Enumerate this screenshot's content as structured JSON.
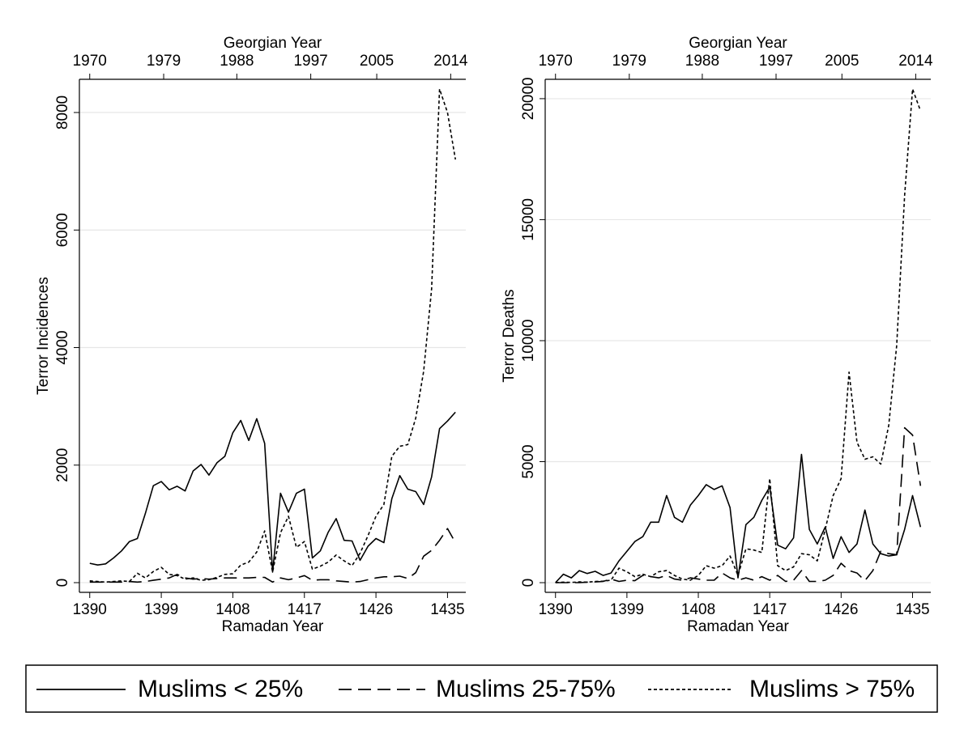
{
  "chart_data": [
    {
      "type": "line",
      "xlabel": "Ramadan Year",
      "x2label": "Georgian Year",
      "ylabel": "Terror Incidences",
      "x": [
        1390,
        1391,
        1392,
        1393,
        1394,
        1395,
        1396,
        1397,
        1398,
        1399,
        1400,
        1401,
        1402,
        1403,
        1404,
        1405,
        1406,
        1407,
        1408,
        1409,
        1410,
        1411,
        1412,
        1413,
        1414,
        1415,
        1416,
        1417,
        1418,
        1419,
        1420,
        1421,
        1422,
        1423,
        1424,
        1425,
        1426,
        1427,
        1428,
        1429,
        1430,
        1431,
        1432,
        1433,
        1434,
        1435,
        1436
      ],
      "series": [
        {
          "name": "Muslims < 25%",
          "color": "#000000",
          "dash": "solid",
          "values": [
            330,
            300,
            320,
            420,
            540,
            700,
            750,
            1180,
            1650,
            1720,
            1580,
            1640,
            1560,
            1900,
            2010,
            1830,
            2040,
            2150,
            2550,
            2760,
            2420,
            2790,
            2370,
            180,
            1520,
            1200,
            1520,
            1590,
            420,
            540,
            860,
            1090,
            720,
            710,
            380,
            620,
            750,
            680,
            1430,
            1820,
            1590,
            1550,
            1330,
            1800,
            2620,
            2750,
            2900
          ]
        },
        {
          "name": "Muslims 25-75%",
          "color": "#000000",
          "dash": "dashed",
          "values": [
            10,
            10,
            10,
            10,
            10,
            20,
            10,
            20,
            40,
            60,
            80,
            140,
            80,
            60,
            70,
            60,
            70,
            80,
            80,
            80,
            80,
            90,
            90,
            10,
            80,
            50,
            80,
            120,
            40,
            50,
            50,
            30,
            20,
            10,
            20,
            50,
            80,
            100,
            100,
            110,
            70,
            170,
            450,
            550,
            720,
            920,
            680
          ]
        },
        {
          "name": "Muslims > 75%",
          "color": "#000000",
          "dash": "dotted",
          "values": [
            30,
            20,
            10,
            20,
            30,
            20,
            160,
            80,
            190,
            260,
            140,
            120,
            60,
            80,
            40,
            50,
            90,
            140,
            150,
            300,
            350,
            520,
            880,
            180,
            850,
            1130,
            600,
            700,
            230,
            280,
            350,
            470,
            370,
            290,
            500,
            800,
            1130,
            1330,
            2150,
            2320,
            2350,
            2800,
            3600,
            5000,
            8400,
            8000,
            7200
          ]
        }
      ],
      "xlim": [
        1388.7,
        1437.3
      ],
      "xticks": [
        1390,
        1399,
        1408,
        1417,
        1426,
        1435
      ],
      "x2ticks": [
        {
          "value": 1390,
          "label": "1970"
        },
        {
          "value": 1399.3,
          "label": "1979"
        },
        {
          "value": 1408.5,
          "label": "1988"
        },
        {
          "value": 1417.8,
          "label": "1997"
        },
        {
          "value": 1426.1,
          "label": "2005"
        },
        {
          "value": 1435.4,
          "label": "2014"
        }
      ],
      "ylim": [
        -165,
        8565
      ],
      "yticks": [
        0,
        2000,
        4000,
        6000,
        8000
      ],
      "grid": true
    },
    {
      "type": "line",
      "xlabel": "Ramadan Year",
      "x2label": "Georgian Year",
      "ylabel": "Terror Deaths",
      "x": [
        1390,
        1391,
        1392,
        1393,
        1394,
        1395,
        1396,
        1397,
        1398,
        1399,
        1400,
        1401,
        1402,
        1403,
        1404,
        1405,
        1406,
        1407,
        1408,
        1409,
        1410,
        1411,
        1412,
        1413,
        1414,
        1415,
        1416,
        1417,
        1418,
        1419,
        1420,
        1421,
        1422,
        1423,
        1424,
        1425,
        1426,
        1427,
        1428,
        1429,
        1430,
        1431,
        1432,
        1433,
        1434,
        1435,
        1436
      ],
      "series": [
        {
          "color": "#000000",
          "dash": "solid",
          "values": [
            0,
            350,
            200,
            500,
            380,
            470,
            300,
            400,
            900,
            1300,
            1700,
            1900,
            2500,
            2500,
            3600,
            2700,
            2500,
            3200,
            3600,
            4050,
            3850,
            4000,
            3100,
            200,
            2400,
            2700,
            3400,
            3950,
            1550,
            1400,
            1850,
            5300,
            2200,
            1600,
            2300,
            1000,
            1900,
            1250,
            1600,
            3000,
            1600,
            1200,
            1100,
            1150,
            2200,
            3600,
            2300
          ]
        },
        {
          "color": "#000000",
          "dash": "dashed",
          "values": [
            0,
            0,
            0,
            0,
            20,
            30,
            50,
            150,
            50,
            100,
            80,
            300,
            250,
            200,
            300,
            150,
            100,
            200,
            150,
            100,
            100,
            400,
            200,
            100,
            200,
            100,
            250,
            100,
            300,
            50,
            100,
            500,
            50,
            50,
            100,
            300,
            800,
            500,
            400,
            80,
            500,
            1300,
            1200,
            1150,
            6400,
            6100,
            4000
          ]
        },
        {
          "color": "#000000",
          "dash": "dotted",
          "values": [
            0,
            20,
            10,
            30,
            20,
            50,
            60,
            100,
            600,
            450,
            250,
            350,
            250,
            450,
            500,
            300,
            150,
            100,
            300,
            700,
            600,
            700,
            1100,
            300,
            1400,
            1350,
            1250,
            4300,
            700,
            500,
            650,
            1200,
            1150,
            900,
            2200,
            3600,
            4300,
            8700,
            5800,
            5100,
            5200,
            4900,
            6500,
            9800,
            16000,
            20400,
            19500
          ]
        }
      ],
      "xlim": [
        1388.7,
        1437.3
      ],
      "xticks": [
        1390,
        1399,
        1408,
        1417,
        1426,
        1435
      ],
      "x2ticks": [
        {
          "value": 1390,
          "label": "1970"
        },
        {
          "value": 1399.3,
          "label": "1979"
        },
        {
          "value": 1408.5,
          "label": "1988"
        },
        {
          "value": 1417.8,
          "label": "1997"
        },
        {
          "value": 1426.1,
          "label": "2005"
        },
        {
          "value": 1435.4,
          "label": "2014"
        }
      ],
      "ylim": [
        -400,
        20800
      ],
      "yticks": [
        0,
        5000,
        10000,
        15000,
        20000
      ],
      "grid": true
    }
  ]
}
